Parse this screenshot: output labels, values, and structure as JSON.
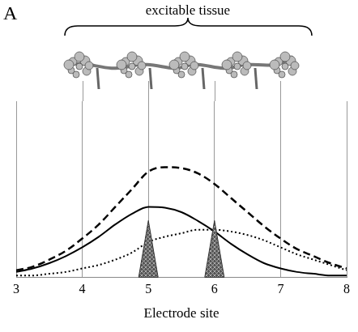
{
  "panel_label": "A",
  "header": "excitable tissue",
  "chart_data": {
    "type": "line",
    "x_label": "Electrode site",
    "x": [
      3,
      3.25,
      3.5,
      3.75,
      4,
      4.25,
      4.5,
      4.75,
      5,
      5.25,
      5.5,
      5.75,
      6,
      6.25,
      6.5,
      6.75,
      7,
      7.25,
      7.5,
      7.75,
      8
    ],
    "series": [
      {
        "color": "#000000",
        "line_style": "dashed",
        "values": [
          0.04,
          0.06,
          0.1,
          0.15,
          0.22,
          0.3,
          0.4,
          0.5,
          0.6,
          0.625,
          0.62,
          0.59,
          0.53,
          0.45,
          0.37,
          0.29,
          0.22,
          0.16,
          0.12,
          0.08,
          0.05
        ]
      },
      {
        "color": "#000000",
        "line_style": "solid",
        "values": [
          0.03,
          0.05,
          0.08,
          0.12,
          0.17,
          0.23,
          0.3,
          0.36,
          0.4,
          0.395,
          0.37,
          0.32,
          0.26,
          0.19,
          0.13,
          0.08,
          0.05,
          0.03,
          0.02,
          0.01,
          0.01
        ]
      },
      {
        "color": "#000000",
        "line_style": "dotted",
        "values": [
          0.01,
          0.01,
          0.02,
          0.03,
          0.05,
          0.07,
          0.1,
          0.14,
          0.2,
          0.23,
          0.25,
          0.27,
          0.27,
          0.26,
          0.24,
          0.21,
          0.17,
          0.13,
          0.1,
          0.07,
          0.04
        ]
      }
    ],
    "xlim": [
      3,
      8
    ],
    "xticks": [
      3,
      4,
      5,
      6,
      7,
      8
    ],
    "ylim": [
      0,
      1
    ],
    "tick_labels": "x",
    "grid": true,
    "electrodes": [
      5,
      6
    ]
  }
}
